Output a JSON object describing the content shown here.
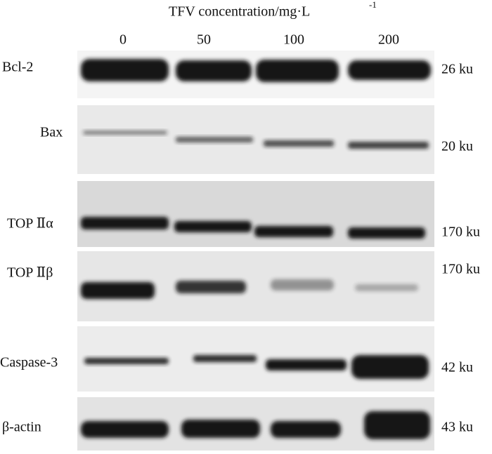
{
  "header": {
    "title": "TFV concentration/mg·L",
    "title_superscript": "-1",
    "lanes": [
      "0",
      "50",
      "100",
      "200"
    ]
  },
  "rows": [
    {
      "label": "Bcl-2",
      "size": "26 ku"
    },
    {
      "label": "Bax",
      "size": "20 ku"
    },
    {
      "label": "TOP Ⅱα",
      "size": "170 ku"
    },
    {
      "label": "TOP Ⅱβ",
      "size": "170 ku"
    },
    {
      "label": "Caspase-3",
      "size": "42 ku"
    },
    {
      "label": "β-actin",
      "size": "43 ku"
    }
  ]
}
